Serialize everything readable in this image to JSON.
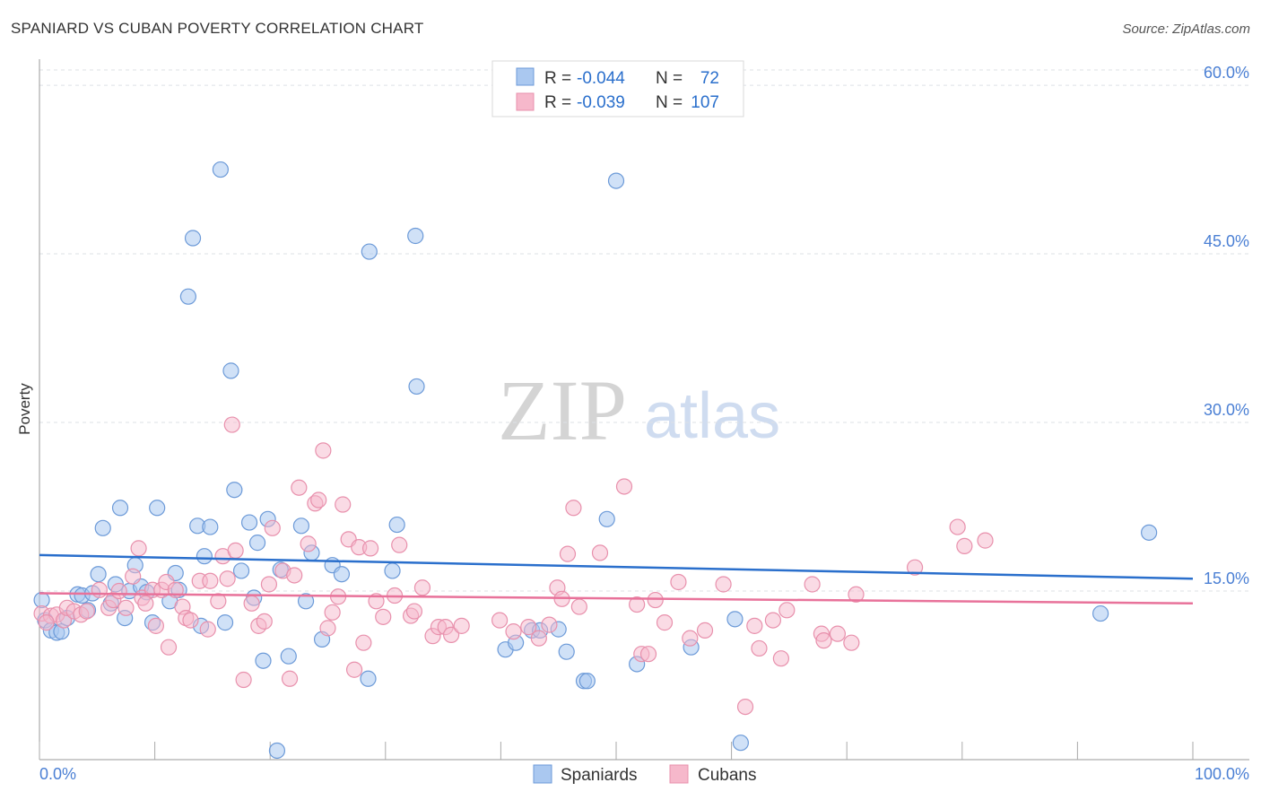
{
  "title": "SPANIARD VS CUBAN POVERTY CORRELATION CHART",
  "source": "Source: ZipAtlas.com",
  "watermark": {
    "zip": "ZIP",
    "atlas": "atlas"
  },
  "colors": {
    "blue_fill": "#aac8f0",
    "blue_stroke": "#6c9ad8",
    "blue_line": "#2a6fcc",
    "pink_fill": "#f6b8cb",
    "pink_stroke": "#e890ac",
    "pink_line": "#e8729a",
    "axis_text": "#4a7fd4",
    "grid": "#dde0e6"
  },
  "legend": {
    "rows": [
      {
        "r_label": "R =",
        "r_value": "-0.044",
        "n_label": "N =",
        "n_value": "72"
      },
      {
        "r_label": "R =",
        "r_value": "-0.039",
        "n_label": "N =",
        "n_value": "107"
      }
    ]
  },
  "bottom_legend": [
    "Spaniards",
    "Cubans"
  ],
  "chart_data": {
    "type": "scatter",
    "title": "SPANIARD VS CUBAN POVERTY CORRELATION CHART",
    "xlabel": "",
    "ylabel": "Poverty",
    "xlim": [
      0,
      100
    ],
    "ylim": [
      0,
      62
    ],
    "x_tick_labels": [
      "0.0%",
      "100.0%"
    ],
    "y_ticks": [
      15,
      30,
      45,
      60
    ],
    "y_tick_labels": [
      "15.0%",
      "30.0%",
      "45.0%",
      "60.0%"
    ],
    "grid": true,
    "legend_position": "top-center",
    "series": [
      {
        "name": "Spaniards",
        "trend": {
          "x": [
            0,
            100
          ],
          "y": [
            18.2,
            16.1
          ]
        },
        "points": [
          [
            0.2,
            14.2
          ],
          [
            0.5,
            12.4
          ],
          [
            1.0,
            11.5
          ],
          [
            1.5,
            11.3
          ],
          [
            1.9,
            11.4
          ],
          [
            2.4,
            12.6
          ],
          [
            3.3,
            14.7
          ],
          [
            3.7,
            14.6
          ],
          [
            4.2,
            13.3
          ],
          [
            4.6,
            14.8
          ],
          [
            5.1,
            16.5
          ],
          [
            5.5,
            20.6
          ],
          [
            6.2,
            13.9
          ],
          [
            6.6,
            15.6
          ],
          [
            7.0,
            22.4
          ],
          [
            7.4,
            12.6
          ],
          [
            7.8,
            15.0
          ],
          [
            8.3,
            17.3
          ],
          [
            8.8,
            15.4
          ],
          [
            9.3,
            14.9
          ],
          [
            9.8,
            12.2
          ],
          [
            10.2,
            22.4
          ],
          [
            11.3,
            14.1
          ],
          [
            11.8,
            16.6
          ],
          [
            12.1,
            15.1
          ],
          [
            12.9,
            41.2
          ],
          [
            13.3,
            46.4
          ],
          [
            13.7,
            20.8
          ],
          [
            14.0,
            11.9
          ],
          [
            14.3,
            18.1
          ],
          [
            14.8,
            20.7
          ],
          [
            15.7,
            52.5
          ],
          [
            16.1,
            12.2
          ],
          [
            16.6,
            34.6
          ],
          [
            16.9,
            24.0
          ],
          [
            17.5,
            16.8
          ],
          [
            18.2,
            21.1
          ],
          [
            18.6,
            14.4
          ],
          [
            18.9,
            19.3
          ],
          [
            19.4,
            8.8
          ],
          [
            19.8,
            21.4
          ],
          [
            20.6,
            0.8
          ],
          [
            20.9,
            16.9
          ],
          [
            21.6,
            9.2
          ],
          [
            22.7,
            20.8
          ],
          [
            23.1,
            14.1
          ],
          [
            23.6,
            18.4
          ],
          [
            24.5,
            10.7
          ],
          [
            25.4,
            17.3
          ],
          [
            26.2,
            16.5
          ],
          [
            28.5,
            7.2
          ],
          [
            28.6,
            45.2
          ],
          [
            30.6,
            16.8
          ],
          [
            31.0,
            20.9
          ],
          [
            32.6,
            46.6
          ],
          [
            32.7,
            33.2
          ],
          [
            40.4,
            9.8
          ],
          [
            41.3,
            10.4
          ],
          [
            42.7,
            11.5
          ],
          [
            43.4,
            11.5
          ],
          [
            45.0,
            11.6
          ],
          [
            45.7,
            9.6
          ],
          [
            47.2,
            7.0
          ],
          [
            47.5,
            7.0
          ],
          [
            49.2,
            21.4
          ],
          [
            50.0,
            51.5
          ],
          [
            51.8,
            8.5
          ],
          [
            56.5,
            10.0
          ],
          [
            60.3,
            12.5
          ],
          [
            60.8,
            1.5
          ],
          [
            92.0,
            13.0
          ],
          [
            96.2,
            20.2
          ]
        ]
      },
      {
        "name": "Cubans",
        "trend": {
          "x": [
            0,
            100
          ],
          "y": [
            14.8,
            13.9
          ]
        },
        "points": [
          [
            0.2,
            13.0
          ],
          [
            1.0,
            12.8
          ],
          [
            1.5,
            12.9
          ],
          [
            2.1,
            12.4
          ],
          [
            2.4,
            13.5
          ],
          [
            3.0,
            13.2
          ],
          [
            3.6,
            12.9
          ],
          [
            4.1,
            13.2
          ],
          [
            5.2,
            15.1
          ],
          [
            6.0,
            13.5
          ],
          [
            6.4,
            14.2
          ],
          [
            6.9,
            15.0
          ],
          [
            7.5,
            13.5
          ],
          [
            8.1,
            16.3
          ],
          [
            8.6,
            18.8
          ],
          [
            8.9,
            14.4
          ],
          [
            9.2,
            13.9
          ],
          [
            9.8,
            15.1
          ],
          [
            10.1,
            11.9
          ],
          [
            10.6,
            15.1
          ],
          [
            11.0,
            15.8
          ],
          [
            11.2,
            10.0
          ],
          [
            11.8,
            15.1
          ],
          [
            12.4,
            13.6
          ],
          [
            12.7,
            12.6
          ],
          [
            13.1,
            12.4
          ],
          [
            13.9,
            15.9
          ],
          [
            14.6,
            11.6
          ],
          [
            14.8,
            15.9
          ],
          [
            15.5,
            14.1
          ],
          [
            15.9,
            18.1
          ],
          [
            16.3,
            16.1
          ],
          [
            16.7,
            29.8
          ],
          [
            17.0,
            18.6
          ],
          [
            17.7,
            7.1
          ],
          [
            18.4,
            13.9
          ],
          [
            19.0,
            11.9
          ],
          [
            19.5,
            12.3
          ],
          [
            19.9,
            15.6
          ],
          [
            20.2,
            20.6
          ],
          [
            21.1,
            16.8
          ],
          [
            21.7,
            7.2
          ],
          [
            22.1,
            16.4
          ],
          [
            22.5,
            24.2
          ],
          [
            23.3,
            19.2
          ],
          [
            23.9,
            22.8
          ],
          [
            24.2,
            23.1
          ],
          [
            24.6,
            27.5
          ],
          [
            25.0,
            11.7
          ],
          [
            25.4,
            13.1
          ],
          [
            25.9,
            14.5
          ],
          [
            26.3,
            22.7
          ],
          [
            26.8,
            19.6
          ],
          [
            27.3,
            8.0
          ],
          [
            27.7,
            18.9
          ],
          [
            28.1,
            10.4
          ],
          [
            28.7,
            18.8
          ],
          [
            29.2,
            14.1
          ],
          [
            29.8,
            12.7
          ],
          [
            30.8,
            14.6
          ],
          [
            31.2,
            19.1
          ],
          [
            32.2,
            12.8
          ],
          [
            32.5,
            13.2
          ],
          [
            33.2,
            15.3
          ],
          [
            34.1,
            11.0
          ],
          [
            34.6,
            11.8
          ],
          [
            35.2,
            11.8
          ],
          [
            35.7,
            11.1
          ],
          [
            36.6,
            11.9
          ],
          [
            39.9,
            12.4
          ],
          [
            41.1,
            11.4
          ],
          [
            42.4,
            11.8
          ],
          [
            43.3,
            10.8
          ],
          [
            44.2,
            12.0
          ],
          [
            44.9,
            15.3
          ],
          [
            45.3,
            14.3
          ],
          [
            45.8,
            18.3
          ],
          [
            46.3,
            22.4
          ],
          [
            46.8,
            13.6
          ],
          [
            48.6,
            18.4
          ],
          [
            50.7,
            24.3
          ],
          [
            51.8,
            13.8
          ],
          [
            52.2,
            9.4
          ],
          [
            52.8,
            9.4
          ],
          [
            53.4,
            14.2
          ],
          [
            54.2,
            12.2
          ],
          [
            55.4,
            15.8
          ],
          [
            56.4,
            10.8
          ],
          [
            57.7,
            11.5
          ],
          [
            59.3,
            15.6
          ],
          [
            61.2,
            4.7
          ],
          [
            62.0,
            11.9
          ],
          [
            62.4,
            9.9
          ],
          [
            63.6,
            12.4
          ],
          [
            64.3,
            9.0
          ],
          [
            64.8,
            13.3
          ],
          [
            67.0,
            15.6
          ],
          [
            67.8,
            11.2
          ],
          [
            68.0,
            10.6
          ],
          [
            69.2,
            11.2
          ],
          [
            70.4,
            10.4
          ],
          [
            70.8,
            14.7
          ],
          [
            75.9,
            17.1
          ],
          [
            79.6,
            20.7
          ],
          [
            80.2,
            19.0
          ],
          [
            82.0,
            19.5
          ],
          [
            0.6,
            12.2
          ]
        ]
      }
    ]
  }
}
